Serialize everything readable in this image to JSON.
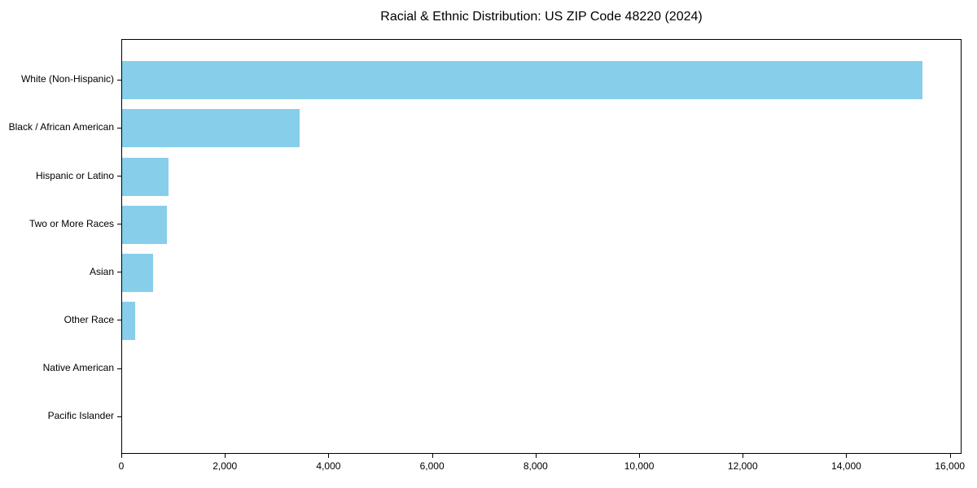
{
  "chart_data": {
    "type": "bar",
    "orientation": "horizontal",
    "title": "Racial & Ethnic Distribution: US ZIP Code 48220 (2024)",
    "categories": [
      "White (Non-Hispanic)",
      "Black / African American",
      "Hispanic or Latino",
      "Two or More Races",
      "Asian",
      "Other Race",
      "Native American",
      "Pacific Islander"
    ],
    "values": [
      15450,
      3420,
      900,
      860,
      590,
      250,
      0,
      0
    ],
    "xlabel": "",
    "ylabel": "",
    "xlim": [
      0,
      16225
    ],
    "x_ticks": [
      0,
      2000,
      4000,
      6000,
      8000,
      10000,
      12000,
      14000,
      16000
    ],
    "x_tick_labels": [
      "0",
      "2,000",
      "4,000",
      "6,000",
      "8,000",
      "10,000",
      "12,000",
      "14,000",
      "16,000"
    ],
    "bar_color": "#87CEEB",
    "axis_color": "#000000",
    "grid": false,
    "legend_position": "none"
  }
}
